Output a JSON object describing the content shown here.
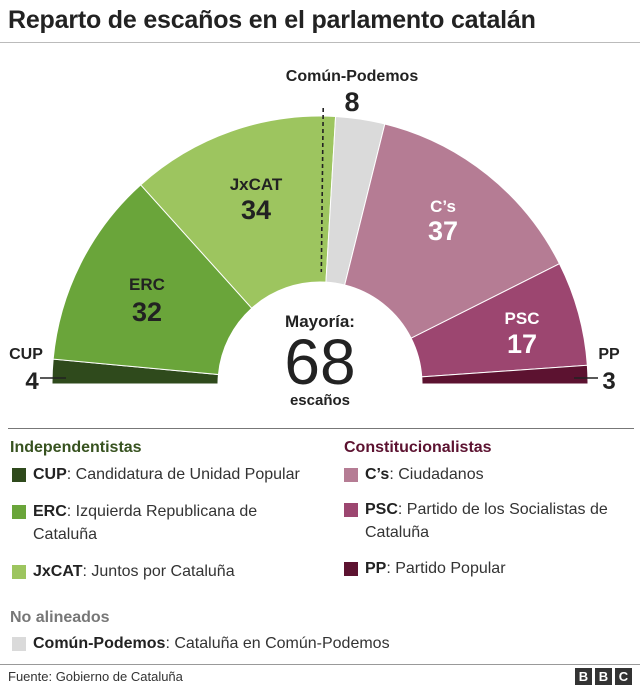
{
  "title": "Reparto de escaños en el parlamento catalán",
  "chart_data": {
    "type": "parliament-hemicycle",
    "total": 135,
    "parties": [
      {
        "id": "cup",
        "label": "CUP",
        "seats": 4,
        "color": "#2f4a1c"
      },
      {
        "id": "erc",
        "label": "ERC",
        "seats": 32,
        "color": "#6aa53a"
      },
      {
        "id": "jxcat",
        "label": "JxCAT",
        "seats": 34,
        "color": "#9dc55f"
      },
      {
        "id": "comun",
        "label": "Común-Podemos",
        "seats": 8,
        "color": "#dadada"
      },
      {
        "id": "cs",
        "label": "C’s",
        "seats": 37,
        "color": "#b57c94"
      },
      {
        "id": "psc",
        "label": "PSC",
        "seats": 17,
        "color": "#9c4670"
      },
      {
        "id": "pp",
        "label": "PP",
        "seats": 3,
        "color": "#5c1230"
      }
    ],
    "majority": {
      "label": "Mayoría:",
      "value": 68,
      "unit": "escaños"
    }
  },
  "legend": {
    "independentistas": {
      "title": "Independentistas",
      "color": "#37521f",
      "items": [
        {
          "abbr": "CUP",
          "name": ": Candidatura de Unidad Popular",
          "color": "#2f4a1c"
        },
        {
          "abbr": "ERC",
          "name": ": Izquierda Republicana de Cataluña",
          "color": "#6aa53a"
        },
        {
          "abbr": "JxCAT",
          "name": ": Juntos por Cataluña",
          "color": "#9dc55f"
        }
      ]
    },
    "constitucionalistas": {
      "title": "Constitucionalistas",
      "color": "#5c1230",
      "items": [
        {
          "abbr": "C’s",
          "name": ": Ciudadanos",
          "color": "#b57c94"
        },
        {
          "abbr": "PSC",
          "name": ": Partido de los Socialistas de Cataluña",
          "color": "#9c4670"
        },
        {
          "abbr": "PP",
          "name": ": Partido Popular",
          "color": "#5c1230"
        }
      ]
    },
    "no_alineados": {
      "title": "No alineados",
      "color": "#777777",
      "items": [
        {
          "abbr": "Común-Podemos",
          "name": ": Cataluña en Común-Podemos",
          "color": "#dadada"
        }
      ]
    }
  },
  "footer": {
    "source": "Fuente: Gobierno de Cataluña",
    "brand": [
      "B",
      "B",
      "C"
    ]
  }
}
